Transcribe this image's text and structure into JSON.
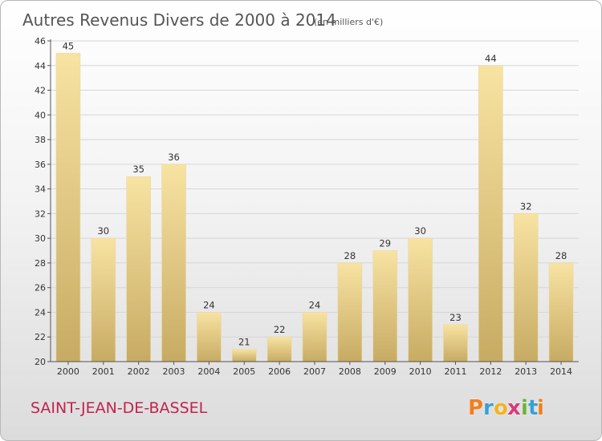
{
  "chart_data": {
    "type": "bar",
    "title": "Autres Revenus Divers de 2000 à 2014",
    "subtitle": "(en milliers d'€)",
    "xlabel": "",
    "ylabel": "",
    "categories": [
      "2000",
      "2001",
      "2002",
      "2003",
      "2004",
      "2005",
      "2006",
      "2007",
      "2008",
      "2009",
      "2010",
      "2011",
      "2012",
      "2013",
      "2014"
    ],
    "values": [
      45,
      30,
      35,
      36,
      24,
      21,
      22,
      24,
      28,
      29,
      30,
      23,
      44,
      32,
      28
    ],
    "ylim": [
      20,
      46
    ],
    "yticks": [
      20,
      22,
      24,
      26,
      28,
      30,
      32,
      34,
      36,
      38,
      40,
      42,
      44,
      46
    ],
    "grid": "horizontal",
    "bar_color": "#edd68c"
  },
  "footer": {
    "commune": "SAINT-JEAN-DE-BASSEL"
  },
  "logo": {
    "letters": [
      "P",
      "r",
      "o",
      "x",
      "i",
      "t",
      "i"
    ],
    "colors": [
      "#f07f1d",
      "#3a9fd6",
      "#f2b320",
      "#d93a7a",
      "#6bb33a",
      "#3a9fd6",
      "#f07f1d"
    ]
  }
}
